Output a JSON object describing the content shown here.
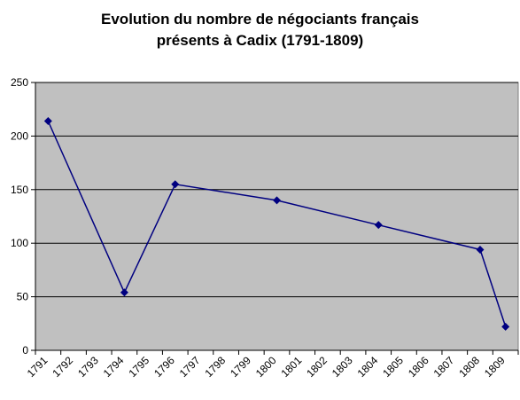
{
  "title_line1": "Evolution du nombre de négociants français",
  "title_line2": "présents à Cadix (1791-1809)",
  "chart_data": {
    "type": "line",
    "categories": [
      "1791",
      "1792",
      "1793",
      "1794",
      "1795",
      "1796",
      "1797",
      "1798",
      "1799",
      "1800",
      "1801",
      "1802",
      "1803",
      "1804",
      "1805",
      "1806",
      "1807",
      "1808",
      "1809"
    ],
    "series": [
      {
        "values": [
          214,
          null,
          null,
          54,
          null,
          155,
          null,
          null,
          null,
          140,
          null,
          null,
          null,
          117,
          null,
          null,
          null,
          94,
          22
        ],
        "marker": "diamond",
        "color": "#000080"
      }
    ],
    "ylim": [
      0,
      250
    ],
    "yticks": [
      0,
      50,
      100,
      150,
      200,
      250
    ],
    "grid": true,
    "legend": "none",
    "plot_background": "#c0c0c0"
  }
}
